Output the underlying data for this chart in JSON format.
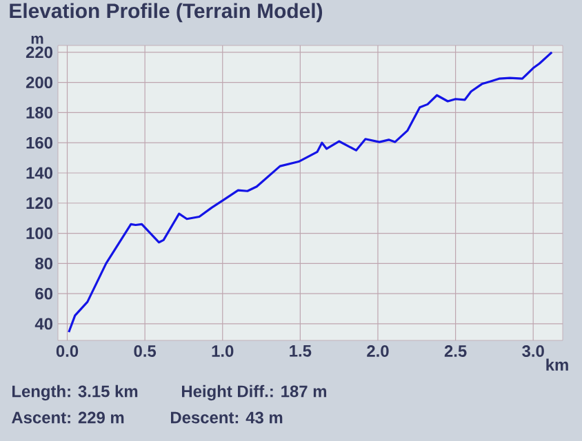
{
  "chart_data": {
    "type": "line",
    "title": "Elevation Profile (Terrain Model)",
    "xlabel": "km",
    "ylabel": "m",
    "annotations": [
      "Length: 3.15 km",
      "Height Diff.: 187 m",
      "Ascent: 229 m",
      "Descent: 43 m"
    ],
    "x": [
      0.01,
      0.05,
      0.13,
      0.25,
      0.41,
      0.44,
      0.48,
      0.59,
      0.62,
      0.72,
      0.77,
      0.85,
      0.93,
      1.02,
      1.1,
      1.16,
      1.22,
      1.37,
      1.49,
      1.61,
      1.64,
      1.67,
      1.75,
      1.86,
      1.92,
      2.01,
      2.07,
      2.11,
      2.19,
      2.27,
      2.32,
      2.38,
      2.45,
      2.5,
      2.56,
      2.6,
      2.67,
      2.72,
      2.78,
      2.85,
      2.93,
      3.0,
      3.04,
      3.12
    ],
    "values": [
      34.5,
      45.5,
      54.5,
      80,
      106,
      105.5,
      106,
      94,
      95.5,
      113,
      109.5,
      111,
      117,
      123,
      128.5,
      128,
      131,
      144.5,
      147.5,
      154,
      160,
      156,
      161,
      155,
      162.5,
      160.5,
      162,
      160.5,
      168,
      183.5,
      185.5,
      191.5,
      187.5,
      189,
      188.5,
      194,
      199,
      200.5,
      202.5,
      203,
      202.5,
      209.5,
      212.5,
      220
    ],
    "color": "#1414e6",
    "xlim": [
      -0.06,
      3.19
    ],
    "ylim": [
      29,
      224.5
    ],
    "xticks": [
      {
        "value": 0,
        "label": "0.0"
      },
      0.5,
      {
        "value": 1,
        "label": "1.0"
      },
      1.5,
      {
        "value": 2,
        "label": "2.0"
      },
      2.5,
      {
        "value": 3,
        "label": "3.0"
      }
    ],
    "yticks": [
      40,
      60,
      80,
      100,
      120,
      140,
      160,
      180,
      200,
      220
    ],
    "grid": true
  }
}
